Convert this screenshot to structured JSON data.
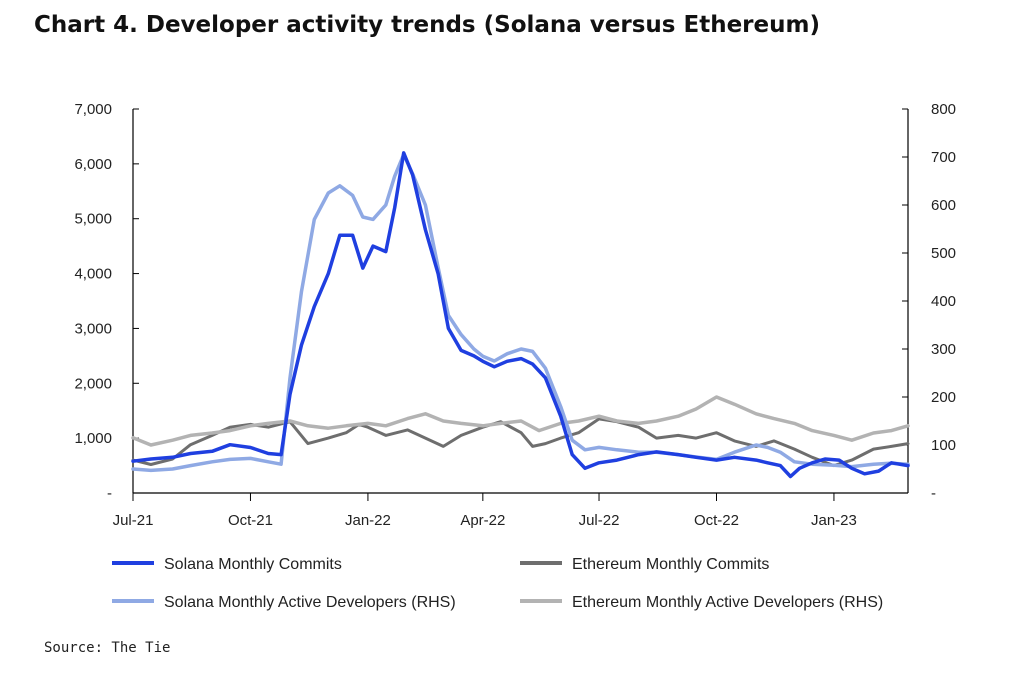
{
  "title": "Chart 4. Developer activity trends (Solana versus Ethereum)",
  "source": "Source: The Tie",
  "chart_data": {
    "type": "line",
    "x_start": "2021-07-01",
    "x_end": "2023-02-28",
    "x_ticks": [
      {
        "date": "2021-07-01",
        "label": "Jul-21"
      },
      {
        "date": "2021-10-01",
        "label": "Oct-21"
      },
      {
        "date": "2022-01-01",
        "label": "Jan-22"
      },
      {
        "date": "2022-04-01",
        "label": "Apr-22"
      },
      {
        "date": "2022-07-01",
        "label": "Jul-22"
      },
      {
        "date": "2022-10-01",
        "label": "Oct-22"
      },
      {
        "date": "2023-01-01",
        "label": "Jan-23"
      }
    ],
    "y_left": {
      "min": 0,
      "max": 7000,
      "ticks": [
        {
          "v": 0,
          "label": "-"
        },
        {
          "v": 1000,
          "label": "1,000"
        },
        {
          "v": 2000,
          "label": "2,000"
        },
        {
          "v": 3000,
          "label": "3,000"
        },
        {
          "v": 4000,
          "label": "4,000"
        },
        {
          "v": 5000,
          "label": "5,000"
        },
        {
          "v": 6000,
          "label": "6,000"
        },
        {
          "v": 7000,
          "label": "7,000"
        }
      ]
    },
    "y_right": {
      "min": 0,
      "max": 800,
      "ticks": [
        {
          "v": 0,
          "label": "-"
        },
        {
          "v": 100,
          "label": "100"
        },
        {
          "v": 200,
          "label": "200"
        },
        {
          "v": 300,
          "label": "300"
        },
        {
          "v": 400,
          "label": "400"
        },
        {
          "v": 500,
          "label": "500"
        },
        {
          "v": 600,
          "label": "600"
        },
        {
          "v": 700,
          "label": "700"
        },
        {
          "v": 800,
          "label": "800"
        }
      ]
    },
    "legend_position": "bottom",
    "series": [
      {
        "name": "Solana Monthly Commits",
        "axis": "left",
        "color": "#1f3fe0",
        "width": 3.5,
        "points": [
          [
            "2021-07-01",
            580
          ],
          [
            "2021-07-15",
            620
          ],
          [
            "2021-08-01",
            650
          ],
          [
            "2021-08-15",
            720
          ],
          [
            "2021-09-01",
            760
          ],
          [
            "2021-09-15",
            880
          ],
          [
            "2021-10-01",
            830
          ],
          [
            "2021-10-15",
            720
          ],
          [
            "2021-10-25",
            700
          ],
          [
            "2021-11-01",
            1800
          ],
          [
            "2021-11-10",
            2700
          ],
          [
            "2021-11-20",
            3400
          ],
          [
            "2021-12-01",
            4000
          ],
          [
            "2021-12-10",
            4700
          ],
          [
            "2021-12-20",
            4700
          ],
          [
            "2021-12-28",
            4100
          ],
          [
            "2022-01-05",
            4500
          ],
          [
            "2022-01-15",
            4400
          ],
          [
            "2022-01-22",
            5200
          ],
          [
            "2022-01-29",
            6200
          ],
          [
            "2022-02-05",
            5800
          ],
          [
            "2022-02-15",
            4800
          ],
          [
            "2022-02-25",
            4000
          ],
          [
            "2022-03-05",
            3000
          ],
          [
            "2022-03-15",
            2600
          ],
          [
            "2022-03-25",
            2500
          ],
          [
            "2022-04-01",
            2400
          ],
          [
            "2022-04-10",
            2300
          ],
          [
            "2022-04-20",
            2400
          ],
          [
            "2022-05-01",
            2450
          ],
          [
            "2022-05-10",
            2350
          ],
          [
            "2022-05-20",
            2100
          ],
          [
            "2022-06-01",
            1400
          ],
          [
            "2022-06-10",
            700
          ],
          [
            "2022-06-20",
            450
          ],
          [
            "2022-07-01",
            550
          ],
          [
            "2022-07-15",
            600
          ],
          [
            "2022-08-01",
            700
          ],
          [
            "2022-08-15",
            750
          ],
          [
            "2022-09-01",
            700
          ],
          [
            "2022-09-15",
            650
          ],
          [
            "2022-10-01",
            600
          ],
          [
            "2022-10-15",
            650
          ],
          [
            "2022-11-01",
            600
          ],
          [
            "2022-11-10",
            550
          ],
          [
            "2022-11-20",
            500
          ],
          [
            "2022-11-28",
            300
          ],
          [
            "2022-12-05",
            450
          ],
          [
            "2022-12-15",
            550
          ],
          [
            "2022-12-25",
            620
          ],
          [
            "2023-01-05",
            600
          ],
          [
            "2023-01-15",
            450
          ],
          [
            "2023-01-25",
            350
          ],
          [
            "2023-02-05",
            400
          ],
          [
            "2023-02-15",
            550
          ],
          [
            "2023-02-28",
            500
          ]
        ]
      },
      {
        "name": "Ethereum Monthly Commits",
        "axis": "left",
        "color": "#6e6e6e",
        "width": 3,
        "points": [
          [
            "2021-07-01",
            600
          ],
          [
            "2021-07-15",
            520
          ],
          [
            "2021-08-01",
            620
          ],
          [
            "2021-08-15",
            880
          ],
          [
            "2021-09-01",
            1050
          ],
          [
            "2021-09-15",
            1200
          ],
          [
            "2021-10-01",
            1250
          ],
          [
            "2021-10-15",
            1200
          ],
          [
            "2021-11-01",
            1300
          ],
          [
            "2021-11-15",
            900
          ],
          [
            "2021-12-01",
            1000
          ],
          [
            "2021-12-15",
            1100
          ],
          [
            "2021-12-25",
            1250
          ],
          [
            "2022-01-01",
            1200
          ],
          [
            "2022-01-15",
            1050
          ],
          [
            "2022-02-01",
            1150
          ],
          [
            "2022-02-15",
            1000
          ],
          [
            "2022-03-01",
            850
          ],
          [
            "2022-03-15",
            1050
          ],
          [
            "2022-04-01",
            1200
          ],
          [
            "2022-04-15",
            1300
          ],
          [
            "2022-05-01",
            1100
          ],
          [
            "2022-05-10",
            850
          ],
          [
            "2022-05-20",
            900
          ],
          [
            "2022-06-01",
            1000
          ],
          [
            "2022-06-15",
            1100
          ],
          [
            "2022-07-01",
            1350
          ],
          [
            "2022-07-15",
            1300
          ],
          [
            "2022-08-01",
            1200
          ],
          [
            "2022-08-15",
            1000
          ],
          [
            "2022-09-01",
            1050
          ],
          [
            "2022-09-15",
            1000
          ],
          [
            "2022-10-01",
            1100
          ],
          [
            "2022-10-15",
            950
          ],
          [
            "2022-11-01",
            850
          ],
          [
            "2022-11-15",
            950
          ],
          [
            "2022-12-01",
            800
          ],
          [
            "2022-12-15",
            650
          ],
          [
            "2023-01-01",
            500
          ],
          [
            "2023-01-15",
            600
          ],
          [
            "2023-02-01",
            800
          ],
          [
            "2023-02-15",
            850
          ],
          [
            "2023-02-28",
            900
          ]
        ]
      },
      {
        "name": "Solana Monthly Active Developers (RHS)",
        "axis": "right",
        "color": "#8fa9e4",
        "width": 3.5,
        "points": [
          [
            "2021-07-01",
            50
          ],
          [
            "2021-07-15",
            47
          ],
          [
            "2021-08-01",
            50
          ],
          [
            "2021-08-15",
            57
          ],
          [
            "2021-09-01",
            65
          ],
          [
            "2021-09-15",
            70
          ],
          [
            "2021-10-01",
            72
          ],
          [
            "2021-10-15",
            65
          ],
          [
            "2021-10-25",
            60
          ],
          [
            "2021-11-01",
            240
          ],
          [
            "2021-11-10",
            420
          ],
          [
            "2021-11-20",
            570
          ],
          [
            "2021-12-01",
            625
          ],
          [
            "2021-12-10",
            640
          ],
          [
            "2021-12-20",
            620
          ],
          [
            "2021-12-28",
            575
          ],
          [
            "2022-01-05",
            570
          ],
          [
            "2022-01-15",
            600
          ],
          [
            "2022-01-22",
            660
          ],
          [
            "2022-01-29",
            705
          ],
          [
            "2022-02-05",
            665
          ],
          [
            "2022-02-15",
            600
          ],
          [
            "2022-02-25",
            470
          ],
          [
            "2022-03-05",
            370
          ],
          [
            "2022-03-15",
            330
          ],
          [
            "2022-03-25",
            300
          ],
          [
            "2022-04-01",
            285
          ],
          [
            "2022-04-10",
            275
          ],
          [
            "2022-04-20",
            290
          ],
          [
            "2022-05-01",
            300
          ],
          [
            "2022-05-10",
            295
          ],
          [
            "2022-05-20",
            260
          ],
          [
            "2022-06-01",
            180
          ],
          [
            "2022-06-10",
            110
          ],
          [
            "2022-06-20",
            90
          ],
          [
            "2022-07-01",
            95
          ],
          [
            "2022-07-15",
            90
          ],
          [
            "2022-08-01",
            85
          ],
          [
            "2022-08-15",
            85
          ],
          [
            "2022-09-01",
            80
          ],
          [
            "2022-09-15",
            75
          ],
          [
            "2022-10-01",
            70
          ],
          [
            "2022-10-15",
            85
          ],
          [
            "2022-11-01",
            100
          ],
          [
            "2022-11-10",
            95
          ],
          [
            "2022-11-20",
            85
          ],
          [
            "2022-12-01",
            65
          ],
          [
            "2022-12-15",
            60
          ],
          [
            "2023-01-01",
            58
          ],
          [
            "2023-01-15",
            55
          ],
          [
            "2023-02-01",
            60
          ],
          [
            "2023-02-15",
            62
          ],
          [
            "2023-02-28",
            60
          ]
        ]
      },
      {
        "name": "Ethereum Monthly Active Developers (RHS)",
        "axis": "right",
        "color": "#b3b3b3",
        "width": 3.5,
        "points": [
          [
            "2021-07-01",
            115
          ],
          [
            "2021-07-15",
            100
          ],
          [
            "2021-08-01",
            110
          ],
          [
            "2021-08-15",
            120
          ],
          [
            "2021-09-01",
            125
          ],
          [
            "2021-09-15",
            130
          ],
          [
            "2021-10-01",
            140
          ],
          [
            "2021-10-15",
            145
          ],
          [
            "2021-11-01",
            150
          ],
          [
            "2021-11-15",
            140
          ],
          [
            "2021-12-01",
            135
          ],
          [
            "2021-12-15",
            140
          ],
          [
            "2022-01-01",
            145
          ],
          [
            "2022-01-15",
            140
          ],
          [
            "2022-02-01",
            155
          ],
          [
            "2022-02-15",
            165
          ],
          [
            "2022-03-01",
            150
          ],
          [
            "2022-03-15",
            145
          ],
          [
            "2022-04-01",
            140
          ],
          [
            "2022-04-15",
            145
          ],
          [
            "2022-05-01",
            150
          ],
          [
            "2022-05-15",
            130
          ],
          [
            "2022-06-01",
            145
          ],
          [
            "2022-06-15",
            150
          ],
          [
            "2022-07-01",
            160
          ],
          [
            "2022-07-15",
            150
          ],
          [
            "2022-08-01",
            145
          ],
          [
            "2022-08-15",
            150
          ],
          [
            "2022-09-01",
            160
          ],
          [
            "2022-09-15",
            175
          ],
          [
            "2022-10-01",
            200
          ],
          [
            "2022-10-15",
            185
          ],
          [
            "2022-11-01",
            165
          ],
          [
            "2022-11-15",
            155
          ],
          [
            "2022-12-01",
            145
          ],
          [
            "2022-12-15",
            130
          ],
          [
            "2023-01-01",
            120
          ],
          [
            "2023-01-15",
            110
          ],
          [
            "2023-02-01",
            125
          ],
          [
            "2023-02-15",
            130
          ],
          [
            "2023-02-28",
            140
          ]
        ]
      }
    ]
  }
}
